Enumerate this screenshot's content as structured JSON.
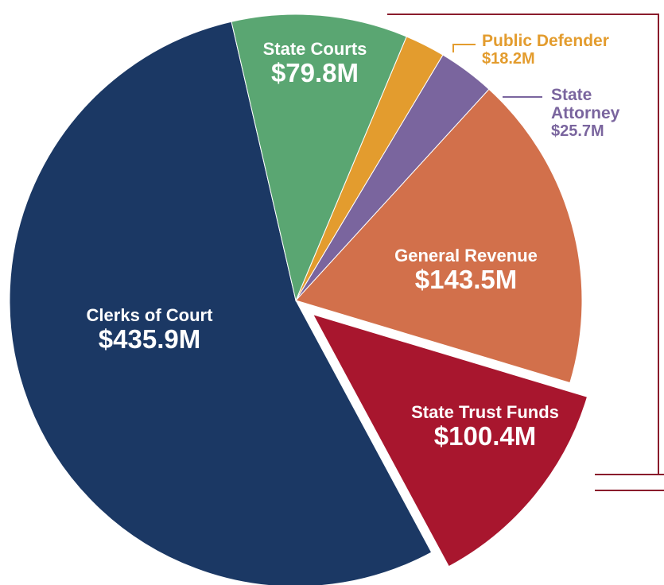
{
  "chart_data": {
    "type": "pie",
    "categories": [
      "State Courts",
      "Public Defender",
      "State Attorney",
      "General Revenue",
      "State Trust Funds",
      "Clerks of Court"
    ],
    "values": [
      79.8,
      18.2,
      25.7,
      143.5,
      100.4,
      435.9
    ],
    "value_labels": [
      "$79.8M",
      "$18.2M",
      "$25.7M",
      "$143.5M",
      "$100.4M",
      "$435.9M"
    ],
    "colors": [
      "#5aa672",
      "#e39c2e",
      "#7a659e",
      "#d2704b",
      "#a8162e",
      "#1b3864"
    ]
  }
}
